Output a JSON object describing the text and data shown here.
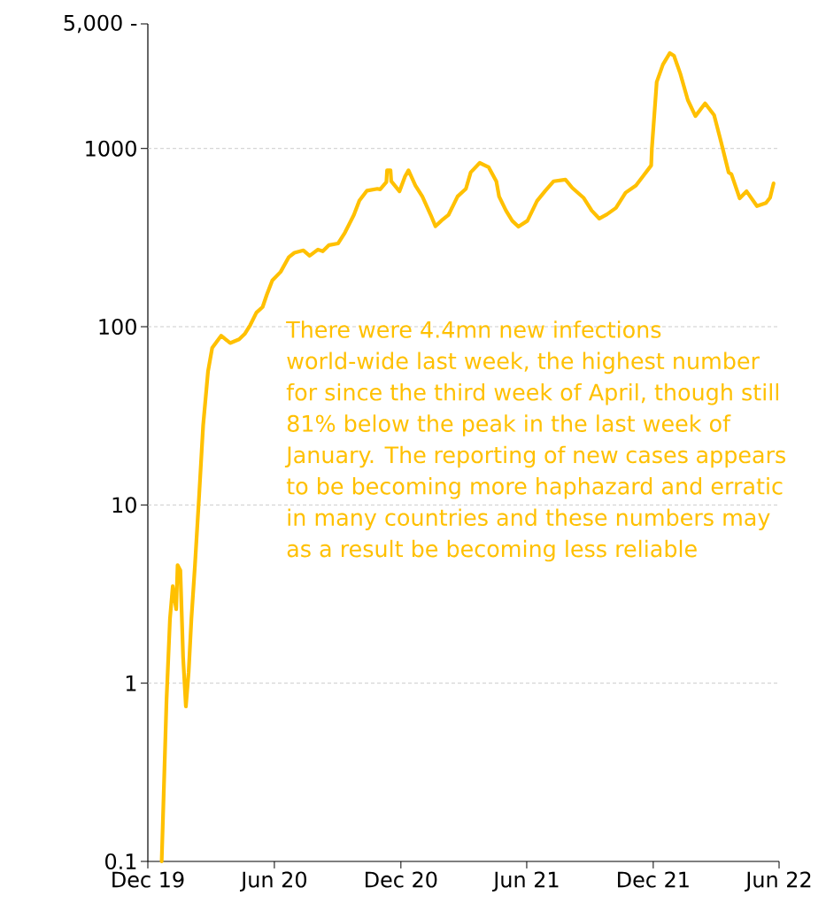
{
  "chart_data": {
    "type": "line",
    "log": "y",
    "grid": "y",
    "marker": "none",
    "line_style": "solid",
    "color": "#ffc000",
    "xlim": [
      "2019-12-01",
      "2022-06-01"
    ],
    "xticks": [
      {
        "value": "2019-12-01",
        "label": "Dec 19"
      },
      {
        "value": "2020-06-01",
        "label": "Jun 20"
      },
      {
        "value": "2020-12-01",
        "label": "Dec 20"
      },
      {
        "value": "2021-06-01",
        "label": "Jun 21"
      },
      {
        "value": "2021-12-01",
        "label": "Dec 21"
      },
      {
        "value": "2022-06-01",
        "label": "Jun 22"
      }
    ],
    "ylim": [
      0.1,
      5000
    ],
    "yticks": [
      0.1,
      1,
      10,
      100,
      1000,
      {
        "value": 5000,
        "label": "5,000 -"
      }
    ],
    "x": [
      "2019-12-21",
      "2019-12-28",
      "2020-01-02",
      "2020-01-06",
      "2020-01-11",
      "2020-01-13",
      "2020-01-17",
      "2020-01-21",
      "2020-01-25",
      "2020-01-29",
      "2020-02-02",
      "2020-02-07",
      "2020-02-13",
      "2020-02-19",
      "2020-02-26",
      "2020-03-03",
      "2020-03-16",
      "2020-03-29",
      "2020-04-11",
      "2020-04-19",
      "2020-04-27",
      "2020-05-06",
      "2020-05-15",
      "2020-05-21",
      "2020-05-29",
      "2020-06-10",
      "2020-06-22",
      "2020-06-30",
      "2020-07-13",
      "2020-07-22",
      "2020-08-03",
      "2020-08-10",
      "2020-08-19",
      "2020-09-01",
      "2020-09-11",
      "2020-09-24",
      "2020-10-02",
      "2020-10-13",
      "2020-10-28",
      "2020-11-01",
      "2020-11-10",
      "2020-11-11",
      "2020-11-16",
      "2020-11-17",
      "2020-11-29",
      "2020-12-07",
      "2020-12-12",
      "2020-12-22",
      "2021-01-01",
      "2021-01-13",
      "2021-01-20",
      "2021-01-29",
      "2021-02-08",
      "2021-02-21",
      "2021-03-05",
      "2021-03-12",
      "2021-03-25",
      "2021-04-07",
      "2021-04-18",
      "2021-04-22",
      "2021-05-02",
      "2021-05-11",
      "2021-05-20",
      "2021-06-02",
      "2021-06-16",
      "2021-06-28",
      "2021-07-10",
      "2021-07-27",
      "2021-08-06",
      "2021-08-22",
      "2021-09-03",
      "2021-09-14",
      "2021-09-25",
      "2021-10-08",
      "2021-10-22",
      "2021-11-06",
      "2021-11-16",
      "2021-11-28",
      "2021-11-29",
      "2021-12-06",
      "2021-12-15",
      "2021-12-25",
      "2021-12-31",
      "2022-01-09",
      "2022-01-20",
      "2022-01-31",
      "2022-02-14",
      "2022-02-27",
      "2022-03-08",
      "2022-03-20",
      "2022-03-24",
      "2022-04-05",
      "2022-04-15",
      "2022-04-30",
      "2022-05-13",
      "2022-05-19",
      "2022-05-24"
    ],
    "values": [
      0.1,
      0.8,
      2.3,
      3.5,
      2.6,
      4.6,
      4.3,
      1.4,
      0.74,
      1.15,
      2.3,
      4.5,
      11,
      28,
      56,
      76,
      89,
      81,
      85,
      91,
      102,
      120,
      129,
      151,
      182,
      203,
      246,
      260,
      268,
      250,
      271,
      265,
      287,
      293,
      337,
      424,
      510,
      580,
      594,
      590,
      648,
      754,
      754,
      655,
      575,
      697,
      754,
      620,
      538,
      425,
      366,
      395,
      425,
      538,
      594,
      735,
      830,
      785,
      655,
      538,
      448,
      393,
      364,
      393,
      508,
      580,
      655,
      669,
      601,
      530,
      448,
      404,
      427,
      464,
      565,
      620,
      697,
      803,
      1000,
      2360,
      2960,
      3430,
      3310,
      2640,
      1870,
      1520,
      1790,
      1540,
      1130,
      735,
      718,
      525,
      575,
      475,
      495,
      530,
      637
    ],
    "annotations": [
      "There were 4.4mn new infections world-wide last week, the highest number for since the third week of April, though still 81% below the peak in the last week of January. The reporting of new cases appears to be becoming more haphazard and erratic in many countries and these numbers may as a result be becoming less reliable"
    ]
  }
}
